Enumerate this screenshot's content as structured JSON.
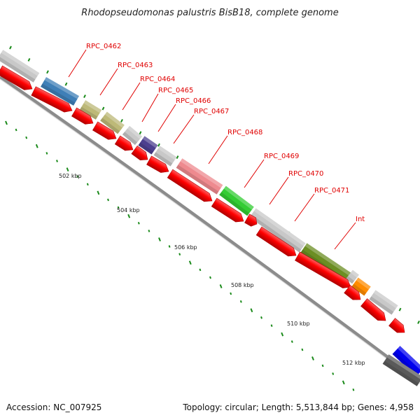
{
  "title": "Rhodopseudomonas palustris BisB18, complete genome",
  "footer": {
    "accession": "Accession: NC_007925",
    "topology": "Topology: circular; Length: 5,513,844 bp; Genes: 4,958"
  },
  "colors": {
    "cds_arrow": "#ff0000",
    "tick": "#1a8a1a",
    "backbone": "#8c8c8c",
    "label": "#e00000"
  },
  "kbp_labels": [
    "502 kbp",
    "504 kbp",
    "506 kbp",
    "508 kbp",
    "510 kbp",
    "512 kbp"
  ],
  "gene_labels": [
    {
      "text": "RPC_0462"
    },
    {
      "text": "RPC_0463"
    },
    {
      "text": "RPC_0464"
    },
    {
      "text": "RPC_0465"
    },
    {
      "text": "RPC_0466"
    },
    {
      "text": "RPC_0467"
    },
    {
      "text": "RPC_0468"
    },
    {
      "text": "RPC_0469"
    },
    {
      "text": "RPC_0470"
    },
    {
      "text": "RPC_0471"
    },
    {
      "text": "Int"
    }
  ],
  "feature_colors": [
    "#c8c8c8",
    "#3f7fb7",
    "#bdb978",
    "#bdb978",
    "#c8c8c8",
    "#4d3f8f",
    "#c8c8c8",
    "#ee8a8f",
    "#33cc33",
    "#c8c8c8",
    "#6b8e23",
    "#c8c8c8",
    "#ff8c00",
    "#c8c8c8",
    "#0000ee",
    "#5a5a5a"
  ]
}
